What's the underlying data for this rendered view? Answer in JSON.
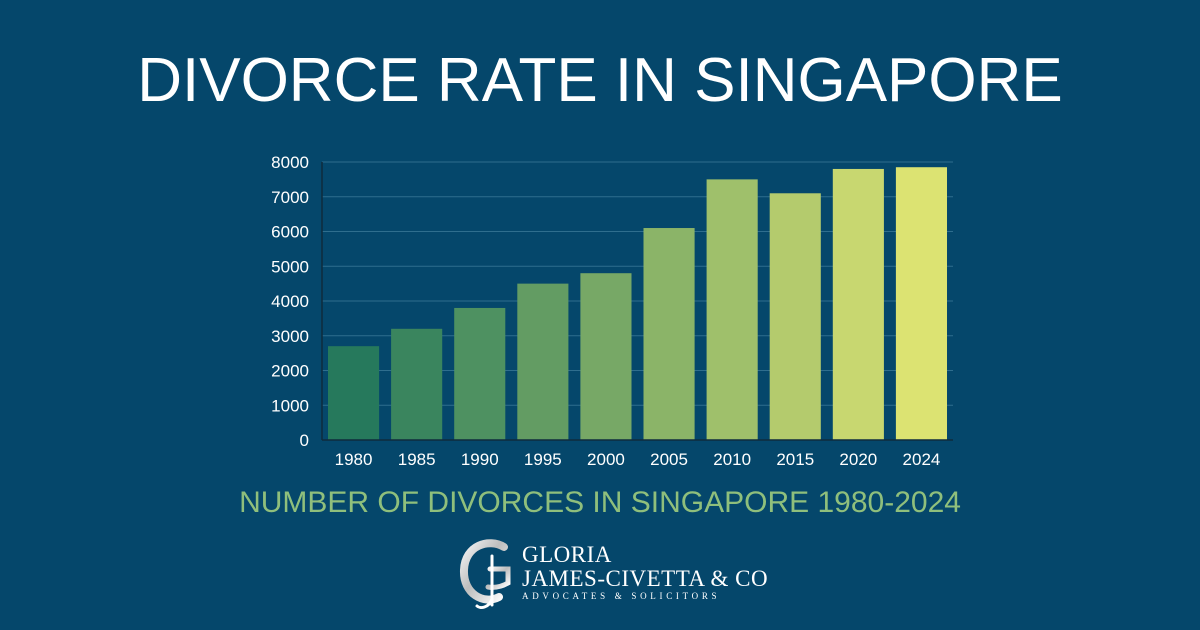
{
  "title": "DIVORCE RATE IN SINGAPORE",
  "subtitle": "NUMBER OF DIVORCES IN SINGAPORE 1980-2024",
  "colors": {
    "background": "#05476b",
    "subtitle": "#8fbf7c",
    "gridline": "#2f6e8e",
    "axis": "#0f2b3d",
    "tick_text": "#ffffff",
    "bar_gradient_start": "#26795c",
    "bar_gradient_end": "#dce372"
  },
  "logo": {
    "line1": "GLORIA",
    "line2": "JAMES-CIVETTA & CO",
    "line3": "ADVOCATES & SOLICITORS",
    "icon": "g-monogram-icon"
  },
  "chart_data": {
    "type": "bar",
    "categories": [
      "1980",
      "1985",
      "1990",
      "1995",
      "2000",
      "2005",
      "2010",
      "2015",
      "2020",
      "2024"
    ],
    "values": [
      2700,
      3200,
      3800,
      4500,
      4800,
      6100,
      7500,
      7100,
      7800,
      7850
    ],
    "yticks": [
      "0",
      "1000",
      "2000",
      "3000",
      "4000",
      "5000",
      "6000",
      "7000",
      "8000"
    ],
    "ylim": [
      0,
      8000
    ],
    "grid": true,
    "legend": "none",
    "title": "DIVORCE RATE IN SINGAPORE",
    "xlabel": "",
    "ylabel": ""
  }
}
